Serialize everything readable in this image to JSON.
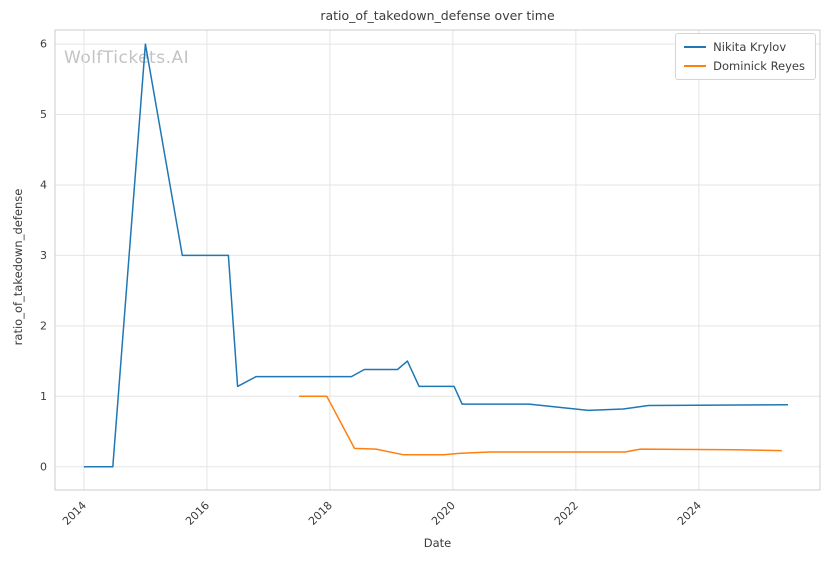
{
  "watermark": "WolfTickets.AI",
  "chart_data": {
    "type": "line",
    "title": "ratio_of_takedown_defense over time",
    "xlabel": "Date",
    "ylabel": "ratio_of_takedown_defense",
    "xlim": [
      2013.53,
      2025.97
    ],
    "ylim": [
      -0.33,
      6.2
    ],
    "xticks": [
      2014,
      2016,
      2018,
      2020,
      2022,
      2024
    ],
    "yticks": [
      0,
      1,
      2,
      3,
      4,
      5,
      6
    ],
    "grid": true,
    "legend_position": "upper right",
    "colors": {
      "grid": "#e5e5e5",
      "spine": "#cccccc",
      "text": "#3c3c3c",
      "series1": "#1f77b4",
      "series2": "#ff7f0e"
    },
    "series": [
      {
        "name": "Nikita Krylov",
        "color": "#1f77b4",
        "points": [
          [
            2014.0,
            0
          ],
          [
            2014.47,
            0
          ],
          [
            2015.0,
            6.0
          ],
          [
            2015.6,
            3.0
          ],
          [
            2016.35,
            3.0
          ],
          [
            2016.5,
            1.14
          ],
          [
            2016.8,
            1.28
          ],
          [
            2018.35,
            1.28
          ],
          [
            2018.56,
            1.38
          ],
          [
            2019.1,
            1.38
          ],
          [
            2019.26,
            1.5
          ],
          [
            2019.45,
            1.14
          ],
          [
            2020.02,
            1.14
          ],
          [
            2020.15,
            0.89
          ],
          [
            2021.24,
            0.89
          ],
          [
            2022.2,
            0.8
          ],
          [
            2022.77,
            0.82
          ],
          [
            2023.18,
            0.87
          ],
          [
            2025.45,
            0.88
          ]
        ]
      },
      {
        "name": "Dominick Reyes",
        "color": "#ff7f0e",
        "points": [
          [
            2017.5,
            1.0
          ],
          [
            2017.95,
            1.0
          ],
          [
            2018.4,
            0.26
          ],
          [
            2018.75,
            0.25
          ],
          [
            2019.2,
            0.17
          ],
          [
            2019.85,
            0.17
          ],
          [
            2020.1,
            0.19
          ],
          [
            2020.6,
            0.21
          ],
          [
            2022.8,
            0.21
          ],
          [
            2023.05,
            0.25
          ],
          [
            2024.6,
            0.24
          ],
          [
            2025.35,
            0.23
          ]
        ]
      }
    ]
  }
}
